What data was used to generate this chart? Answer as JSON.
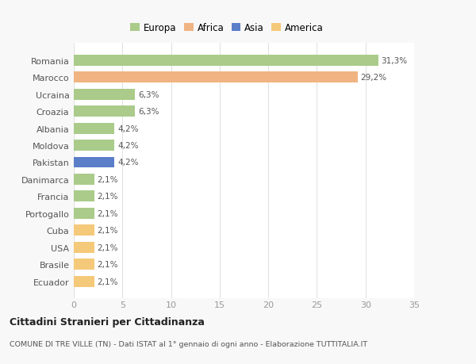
{
  "categories": [
    "Ecuador",
    "Brasile",
    "USA",
    "Cuba",
    "Portogallo",
    "Francia",
    "Danimarca",
    "Pakistan",
    "Moldova",
    "Albania",
    "Croazia",
    "Ucraina",
    "Marocco",
    "Romania"
  ],
  "values": [
    2.1,
    2.1,
    2.1,
    2.1,
    2.1,
    2.1,
    2.1,
    4.2,
    4.2,
    4.2,
    6.3,
    6.3,
    29.2,
    31.3
  ],
  "colors": [
    "#F5C97A",
    "#F5C97A",
    "#F5C97A",
    "#F5C97A",
    "#AACB8A",
    "#AACB8A",
    "#AACB8A",
    "#5B7EC9",
    "#AACB8A",
    "#AACB8A",
    "#AACB8A",
    "#AACB8A",
    "#F0B482",
    "#AACB8A"
  ],
  "labels": [
    "2,1%",
    "2,1%",
    "2,1%",
    "2,1%",
    "2,1%",
    "2,1%",
    "2,1%",
    "4,2%",
    "4,2%",
    "4,2%",
    "6,3%",
    "6,3%",
    "29,2%",
    "31,3%"
  ],
  "legend_labels": [
    "Europa",
    "Africa",
    "Asia",
    "America"
  ],
  "legend_colors": [
    "#AACB8A",
    "#F0B482",
    "#5B7EC9",
    "#F5C97A"
  ],
  "title": "Cittadini Stranieri per Cittadinanza",
  "subtitle": "COMUNE DI TRE VILLE (TN) - Dati ISTAT al 1° gennaio di ogni anno - Elaborazione TUTTITALIA.IT",
  "xlim": [
    0,
    35
  ],
  "xticks": [
    0,
    5,
    10,
    15,
    20,
    25,
    30,
    35
  ],
  "background_color": "#F8F8F8",
  "bar_background": "#FFFFFF",
  "grid_color": "#E0E0E0"
}
